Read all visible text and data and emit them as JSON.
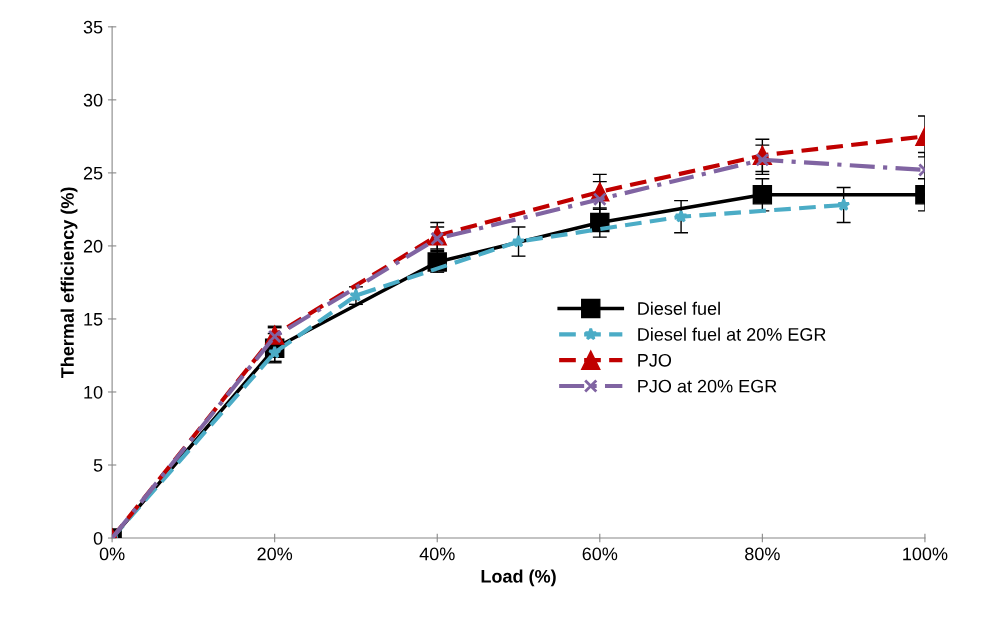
{
  "chart_data": {
    "type": "line",
    "xlabel": "Load (%)",
    "ylabel": "Thermal efficiency (%)",
    "xlim": [
      0,
      100
    ],
    "xticks": [
      {
        "value": 0,
        "label": "0%"
      },
      {
        "value": 20,
        "label": "20%"
      },
      {
        "value": 40,
        "label": "40%"
      },
      {
        "value": 60,
        "label": "60%"
      },
      {
        "value": 80,
        "label": "80%"
      },
      {
        "value": 100,
        "label": "100%"
      }
    ],
    "ylim": [
      0,
      35
    ],
    "yticks": [
      0,
      5,
      10,
      15,
      20,
      25,
      30,
      35
    ],
    "grid": false,
    "legend": "right",
    "series": [
      {
        "name": "Diesel fuel",
        "color": "#000000",
        "marker": "square",
        "line_style": "solid",
        "x": [
          0,
          20,
          40,
          60,
          80,
          100
        ],
        "values": [
          0,
          13.0,
          18.9,
          21.6,
          23.5,
          23.5
        ],
        "errors": [
          null,
          1.0,
          0.7,
          1.0,
          1.1,
          1.1
        ]
      },
      {
        "name": "Diesel fuel at 20% EGR",
        "color": "#4bacc6",
        "marker": "star",
        "line_style": "dashed",
        "x": [
          0,
          20,
          30,
          50,
          70,
          90
        ],
        "values": [
          0,
          12.7,
          16.6,
          20.3,
          22.0,
          22.8
        ],
        "errors": [
          null,
          0.6,
          0.6,
          1.0,
          1.1,
          1.2
        ]
      },
      {
        "name": "PJO",
        "color": "#c00000",
        "marker": "triangle",
        "line_style": "dashed",
        "x": [
          0,
          20,
          40,
          60,
          80,
          100
        ],
        "values": [
          0,
          13.9,
          20.7,
          23.7,
          26.2,
          27.5
        ],
        "errors": [
          null,
          0.6,
          0.9,
          1.2,
          1.1,
          1.4
        ]
      },
      {
        "name": "PJO at 20% EGR",
        "color": "#8064a2",
        "marker": "cross",
        "line_style": "dashdot",
        "x": [
          0,
          20,
          40,
          60,
          80,
          100
        ],
        "values": [
          0,
          13.8,
          20.5,
          23.2,
          25.9,
          25.2
        ],
        "errors": [
          null,
          0.6,
          0.8,
          1.2,
          1.0,
          1.2
        ]
      }
    ]
  }
}
